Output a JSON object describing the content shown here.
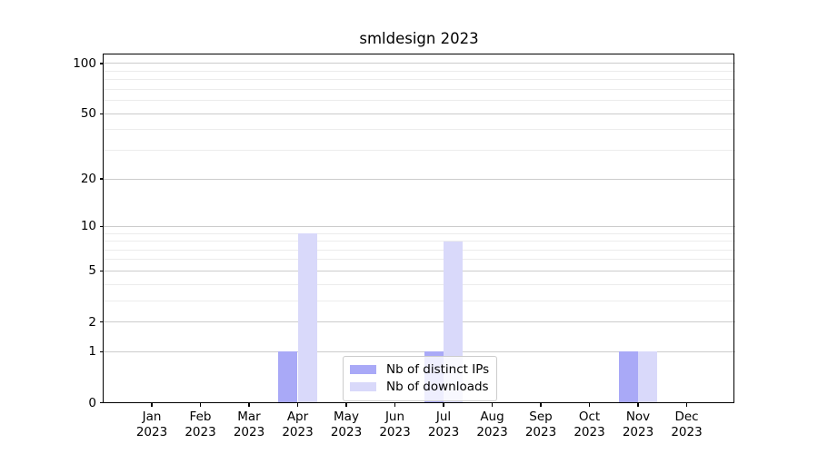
{
  "title": "smldesign 2023",
  "colors": {
    "series_distinct_ips": "#a9a9f7",
    "series_downloads": "#d9d9fa",
    "major_gridline": "#cccccc",
    "minor_gridline": "#ececec",
    "axis_spine": "#000000",
    "legend_border": "#cccccc",
    "text": "#000000",
    "background": "#ffffff"
  },
  "chart_data": {
    "type": "bar",
    "title": "smldesign 2023",
    "categories": [
      "Jan",
      "Feb",
      "Mar",
      "Apr",
      "May",
      "Jun",
      "Jul",
      "Aug",
      "Sep",
      "Oct",
      "Nov",
      "Dec"
    ],
    "category_year": "2023",
    "series": [
      {
        "name": "Nb of distinct IPs",
        "color": "#a9a9f7",
        "values": [
          0,
          0,
          0,
          1,
          0,
          0,
          1,
          0,
          0,
          0,
          1,
          0
        ]
      },
      {
        "name": "Nb of downloads",
        "color": "#d9d9fa",
        "values": [
          0,
          0,
          0,
          9,
          0,
          0,
          8,
          0,
          0,
          0,
          1,
          0
        ]
      }
    ],
    "xlabel": "",
    "ylabel": "",
    "yscale": "log1p",
    "ylim": [
      0,
      113.2
    ],
    "yticks": [
      0,
      1,
      2,
      5,
      10,
      20,
      50,
      100
    ],
    "minor_gridlines": [
      3,
      4,
      6,
      7,
      8,
      9,
      30,
      40,
      60,
      70,
      80,
      90
    ],
    "grid": "horizontal-major-and-minor",
    "legend_position": "lower center"
  }
}
